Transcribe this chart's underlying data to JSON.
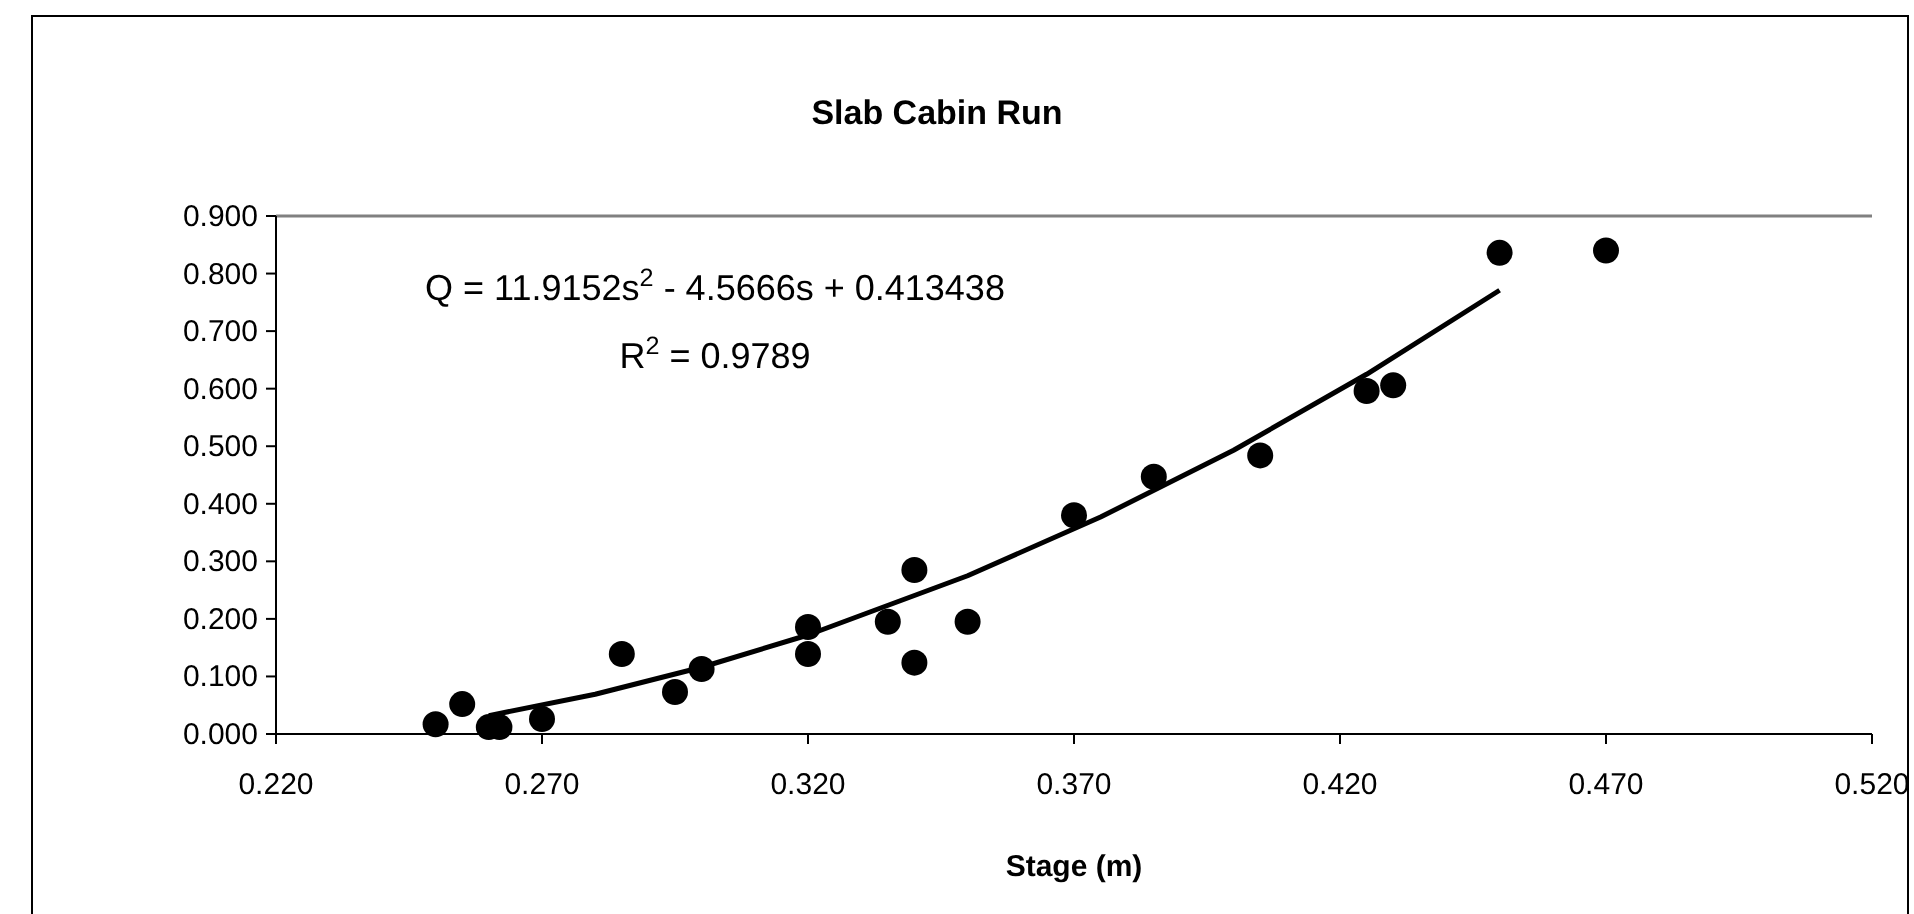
{
  "chart_data": {
    "type": "scatter",
    "title": "Slab Cabin Run",
    "xlabel": "Stage (m)",
    "xlim": [
      0.22,
      0.52
    ],
    "xticks": [
      {
        "value": 0.22,
        "label": "0.220"
      },
      {
        "value": 0.27,
        "label": "0.270"
      },
      {
        "value": 0.32,
        "label": "0.320"
      },
      {
        "value": 0.37,
        "label": "0.370"
      },
      {
        "value": 0.42,
        "label": "0.420"
      },
      {
        "value": 0.47,
        "label": "0.470"
      },
      {
        "value": 0.52,
        "label": "0.520"
      }
    ],
    "ylim": [
      0,
      0.9
    ],
    "yticks": [
      {
        "value": 0,
        "label": "0.000"
      },
      {
        "value": 0.1,
        "label": "0.100"
      },
      {
        "value": 0.2,
        "label": "0.200"
      },
      {
        "value": 0.3,
        "label": "0.300"
      },
      {
        "value": 0.4,
        "label": "0.400"
      },
      {
        "value": 0.5,
        "label": "0.500"
      },
      {
        "value": 0.6,
        "label": "0.600"
      },
      {
        "value": 0.7,
        "label": "0.700"
      },
      {
        "value": 0.8,
        "label": "0.800"
      },
      {
        "value": 0.9,
        "label": "0.900"
      }
    ],
    "grid": false,
    "marker": "circle",
    "annotations": [
      "Q = 11.9152s$^{2}$ - 4.5666s + 0.413438",
      "R$^{2}$ = 0.9789"
    ],
    "series": [
      {
        "color": "#000000",
        "x": [
          0.25,
          0.255,
          0.26,
          0.262,
          0.27,
          0.285,
          0.295,
          0.3,
          0.32,
          0.32,
          0.335,
          0.34,
          0.34,
          0.35,
          0.37,
          0.385,
          0.405,
          0.425,
          0.43,
          0.45,
          0.47
        ],
        "values": [
          0.017,
          0.052,
          0.012,
          0.012,
          0.026,
          0.139,
          0.073,
          0.113,
          0.186,
          0.139,
          0.195,
          0.285,
          0.124,
          0.195,
          0.38,
          0.447,
          0.484,
          0.596,
          0.606,
          0.836,
          0.84
        ]
      },
      {
        "type": "line",
        "color": "#000000",
        "marker": "none",
        "line_style": "solid",
        "x": [
          0.26,
          0.28,
          0.3,
          0.32,
          0.35,
          0.375,
          0.4,
          0.425,
          0.45
        ],
        "values": [
          0.032,
          0.069,
          0.116,
          0.172,
          0.275,
          0.377,
          0.493,
          0.625,
          0.771
        ]
      }
    ]
  }
}
